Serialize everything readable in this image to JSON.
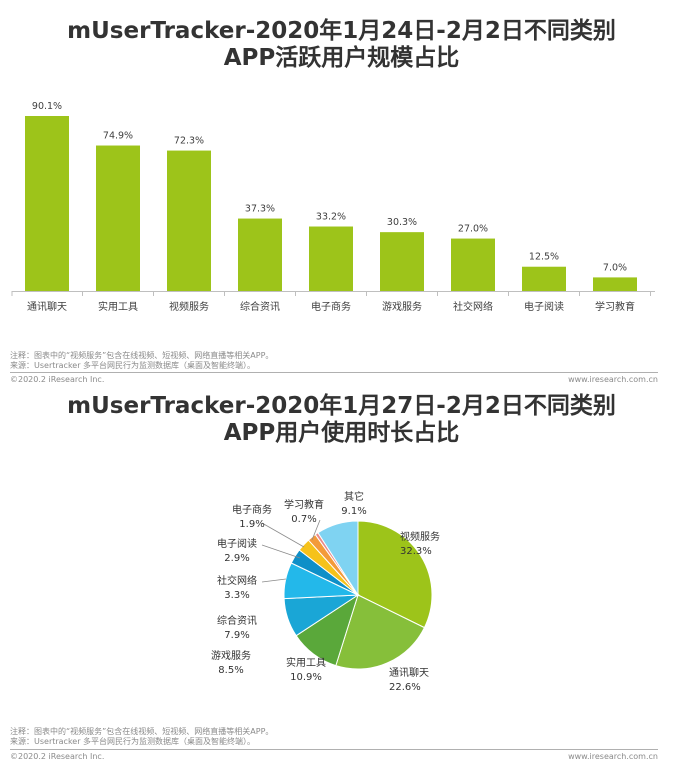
{
  "section1": {
    "title_line1": "mUserTracker-2020年1月24日-2月2日不同类别",
    "title_line2": "APP活跃用户规模占比",
    "note_line1": "注释：图表中的“视频服务”包含在线视频、短视频、网络直播等相关APP。",
    "note_line2": "来源：Usertracker 多平台网民行为监测数据库（桌面及智能终端）。",
    "copyright": "©2020.2 iResearch Inc.",
    "website": "www.iresearch.com.cn"
  },
  "section2": {
    "title_line1": "mUserTracker-2020年1月27日-2月2日不同类别",
    "title_line2": "APP用户使用时长占比",
    "note_line1": "注释：图表中的“视频服务”包含在线视频、短视频、网络直播等相关APP。",
    "note_line2": "来源：Usertracker 多平台网民行为监测数据库（桌面及智能终端）。",
    "copyright": "©2020.2 iResearch Inc.",
    "website": "www.iresearch.com.cn"
  },
  "colors": {
    "bar": "#9dc41a",
    "axis": "#bfbfbf"
  },
  "chart_data": [
    {
      "type": "bar",
      "categories": [
        "通讯聊天",
        "实用工具",
        "视频服务",
        "综合资讯",
        "电子商务",
        "游戏服务",
        "社交网络",
        "电子阅读",
        "学习教育"
      ],
      "values": [
        90.1,
        74.9,
        72.3,
        37.3,
        33.2,
        30.3,
        27.0,
        12.5,
        7.0
      ],
      "value_labels": [
        "90.1%",
        "74.9%",
        "72.3%",
        "37.3%",
        "33.2%",
        "30.3%",
        "27.0%",
        "12.5%",
        "7.0%"
      ],
      "unit": "%",
      "ylim": [
        0,
        100
      ],
      "grid": false,
      "legend": "none"
    },
    {
      "type": "pie",
      "slices": [
        {
          "name": "视频服务",
          "value": 32.3,
          "label": "32.3%",
          "color": "#9dc41a"
        },
        {
          "name": "通讯聊天",
          "value": 22.6,
          "label": "22.6%",
          "color": "#86bf3a"
        },
        {
          "name": "实用工具",
          "value": 10.9,
          "label": "10.9%",
          "color": "#5aa83a"
        },
        {
          "name": "游戏服务",
          "value": 8.5,
          "label": "8.5%",
          "color": "#1aa6d6"
        },
        {
          "name": "综合资讯",
          "value": 7.9,
          "label": "7.9%",
          "color": "#23b8ea"
        },
        {
          "name": "社交网络",
          "value": 3.3,
          "label": "3.3%",
          "color": "#0e8fc8"
        },
        {
          "name": "电子阅读",
          "value": 2.9,
          "label": "2.9%",
          "color": "#f6c21a"
        },
        {
          "name": "电子商务",
          "value": 1.9,
          "label": "1.9%",
          "color": "#f39a3a"
        },
        {
          "name": "学习教育",
          "value": 0.7,
          "label": "0.7%",
          "color": "#e98a8a"
        },
        {
          "name": "其它",
          "value": 9.1,
          "label": "9.1%",
          "color": "#7fd3f2"
        }
      ],
      "start_angle_deg": 0,
      "direction": "clockwise",
      "legend": "none"
    }
  ]
}
